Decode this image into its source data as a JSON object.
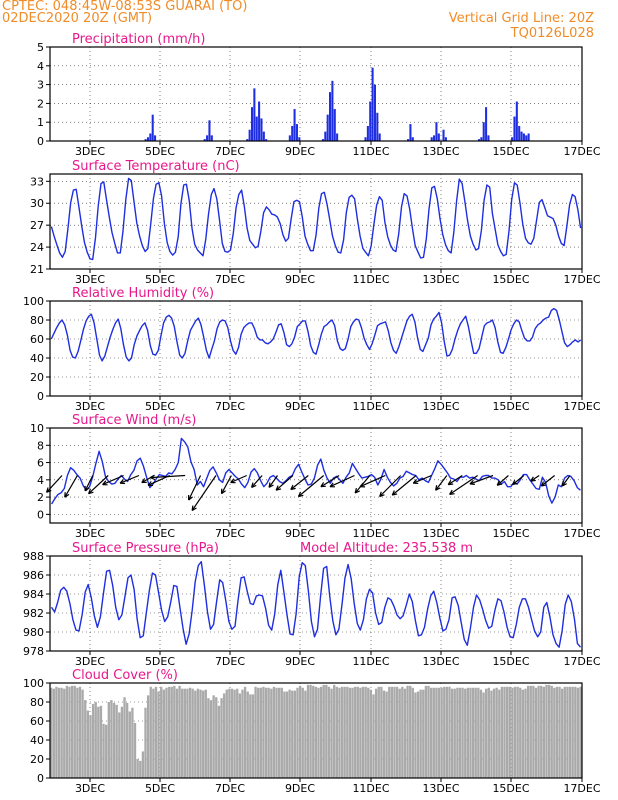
{
  "header": {
    "line1": "CPTEC:  048:45W-08:53S  GUARAI (TO)",
    "line2": "02DEC2020 20Z (GMT)",
    "right1": "Vertical Grid Line: 20Z",
    "right2": "TQ0126L028"
  },
  "colors": {
    "header": "#f08c28",
    "panel_title": "#e8188c",
    "series": "#1e2ee0",
    "cloud": "#aaaaaa",
    "arrow": "#000000"
  },
  "x_axis": {
    "start": "02DEC2020 20Z",
    "end": "17DEC2020 00Z",
    "tick_labels": [
      "3DEC",
      "5DEC",
      "7DEC",
      "9DEC",
      "11DEC",
      "13DEC",
      "15DEC",
      "17DEC"
    ]
  },
  "chart_data": [
    {
      "type": "bar",
      "title": "Precipitation (mm/h)",
      "ylim": [
        0,
        5
      ],
      "yticks": [
        "0",
        "1",
        "2",
        "3",
        "4",
        "5"
      ],
      "grid": true,
      "values": [
        0,
        0,
        0,
        0,
        0,
        0,
        0,
        0,
        0,
        0,
        0,
        0,
        0,
        0,
        0,
        0,
        0,
        0,
        0,
        0,
        0,
        0,
        0,
        0,
        0,
        0,
        0,
        0,
        0,
        0,
        0,
        0,
        0,
        0,
        0,
        0,
        0,
        0,
        0,
        0,
        0.1,
        0.2,
        0.4,
        1.4,
        0.3,
        0,
        0,
        0,
        0,
        0,
        0,
        0,
        0,
        0,
        0,
        0,
        0,
        0,
        0,
        0,
        0,
        0,
        0,
        0,
        0,
        0.1,
        0.3,
        1.1,
        0.3,
        0,
        0,
        0,
        0,
        0,
        0,
        0,
        0,
        0,
        0,
        0,
        0,
        0,
        0,
        0.1,
        0.6,
        1.8,
        2.8,
        1.3,
        2.1,
        1.2,
        0.5,
        0.1,
        0,
        0,
        0,
        0,
        0,
        0,
        0,
        0,
        0,
        0.3,
        0.8,
        1.7,
        0.9,
        0.2,
        0,
        0,
        0,
        0,
        0,
        0,
        0,
        0,
        0,
        0.1,
        0.5,
        1.4,
        2.6,
        3.2,
        1.7,
        0.4,
        0,
        0,
        0,
        0,
        0,
        0,
        0,
        0,
        0,
        0,
        0,
        0.2,
        0.8,
        2.1,
        3.9,
        3,
        1.5,
        0.4,
        0,
        0,
        0,
        0,
        0,
        0,
        0,
        0,
        0,
        0,
        0,
        0.1,
        0.9,
        0.2,
        0,
        0,
        0,
        0,
        0,
        0,
        0,
        0.2,
        0.3,
        1,
        0.4,
        0,
        0.6,
        0.2,
        0,
        0,
        0,
        0,
        0,
        0,
        0,
        0,
        0,
        0,
        0,
        0,
        0,
        0.1,
        0.2,
        1,
        1.8,
        0.3,
        0,
        0,
        0,
        0,
        0,
        0,
        0,
        0,
        0,
        0.2,
        1.3,
        2.1,
        0.8,
        0.5,
        0.4,
        0.3,
        0.4,
        0,
        0,
        0,
        0,
        0,
        0,
        0,
        0,
        0,
        0,
        0,
        0,
        0,
        0,
        0,
        0,
        0,
        0,
        0,
        0,
        0,
        0
      ]
    },
    {
      "type": "line",
      "title": "Surface Temperature (nC)",
      "ylim": [
        21,
        34
      ],
      "yticks": [
        "21",
        "24",
        "27",
        "30",
        "33"
      ],
      "grid": true,
      "values": [
        26.8,
        25.5,
        24.3,
        23.2,
        22.6,
        23.4,
        26.5,
        30.1,
        31.8,
        31.9,
        29.5,
        26.9,
        24.6,
        23.3,
        22.4,
        22.3,
        25.3,
        29.6,
        32.7,
        32.9,
        30.5,
        28.1,
        26,
        24.5,
        23.2,
        23.2,
        26.2,
        30.5,
        33.4,
        33.1,
        30.1,
        27.3,
        25.5,
        24.2,
        23.4,
        23.8,
        27,
        30.6,
        32.6,
        32.8,
        31,
        27.2,
        24.6,
        23.4,
        22.9,
        23.3,
        25.4,
        29.9,
        32.5,
        32.6,
        30.4,
        26.6,
        24.4,
        23.6,
        23.2,
        22.8,
        25,
        28.5,
        31.2,
        32,
        30.6,
        27.7,
        24.5,
        23.4,
        23.3,
        23.6,
        25.9,
        29.4,
        31.2,
        31.8,
        29.6,
        26.6,
        24.9,
        24.4,
        23.9,
        24.1,
        26.2,
        28.7,
        29.5,
        29.1,
        28.5,
        28.4,
        28.1,
        27.2,
        25.7,
        24.8,
        25.2,
        27.9,
        30.2,
        30.4,
        30.2,
        28.2,
        25.5,
        24.4,
        23.5,
        23.5,
        25.6,
        29.3,
        31.3,
        31.5,
        29.9,
        27.7,
        25.5,
        24.2,
        23.3,
        23.2,
        25,
        28.7,
        30.8,
        31.1,
        30.6,
        27.9,
        25.5,
        23.8,
        23.3,
        22.8,
        24.1,
        27.1,
        29.7,
        30.9,
        30.4,
        27.4,
        25.4,
        24.3,
        23.6,
        23.4,
        25.8,
        29.5,
        31.3,
        31,
        29.2,
        26.5,
        24.2,
        23.3,
        22.5,
        22.6,
        25.1,
        29.2,
        32.1,
        32.3,
        30.6,
        27.9,
        25.7,
        24.3,
        23.5,
        23.2,
        26,
        30.3,
        33.3,
        32.7,
        30.3,
        27.6,
        25.5,
        24.4,
        23.6,
        23.8,
        26.3,
        30.4,
        32.5,
        32.2,
        28.6,
        26.4,
        24.3,
        23.4,
        22.8,
        23,
        26.2,
        30.5,
        32.8,
        32.5,
        30,
        27.2,
        25.2,
        24.6,
        24.4,
        25.2,
        27.6,
        30.1,
        30.5,
        29.4,
        28.3,
        28.1,
        27.9,
        27,
        25.5,
        24.5,
        24.2,
        26.8,
        29.8,
        31.2,
        30.9,
        29.1,
        26.6
      ]
    },
    {
      "type": "line",
      "title": "Relative Humidity (%)",
      "ylim": [
        0,
        100
      ],
      "yticks": [
        "0",
        "20",
        "40",
        "60",
        "80",
        "100"
      ],
      "grid": true,
      "values": [
        60,
        66,
        72,
        77,
        80,
        75,
        64,
        48,
        41,
        40,
        47,
        58,
        70,
        79,
        84,
        86,
        77,
        60,
        43,
        37,
        42,
        52,
        62,
        70,
        77,
        81,
        71,
        54,
        41,
        37,
        40,
        54,
        63,
        69,
        74,
        77,
        69,
        53,
        44,
        43,
        48,
        63,
        77,
        83,
        85,
        82,
        73,
        57,
        43,
        40,
        45,
        58,
        69,
        74,
        79,
        82,
        75,
        62,
        48,
        40,
        49,
        58,
        71,
        78,
        80,
        79,
        72,
        58,
        48,
        44,
        51,
        65,
        72,
        75,
        77,
        77,
        71,
        62,
        59,
        59,
        56,
        55,
        57,
        60,
        67,
        75,
        76,
        67,
        54,
        52,
        55,
        62,
        73,
        76,
        79,
        79,
        68,
        53,
        46,
        44,
        54,
        65,
        73,
        75,
        78,
        80,
        74,
        58,
        50,
        48,
        50,
        60,
        73,
        78,
        81,
        80,
        72,
        61,
        54,
        49,
        55,
        64,
        74,
        76,
        77,
        78,
        69,
        56,
        48,
        45,
        52,
        61,
        70,
        79,
        84,
        86,
        78,
        61,
        49,
        47,
        54,
        61,
        75,
        81,
        84,
        88,
        77,
        57,
        42,
        43,
        49,
        60,
        69,
        76,
        80,
        84,
        73,
        58,
        45,
        45,
        50,
        62,
        74,
        77,
        78,
        80,
        72,
        57,
        46,
        45,
        51,
        60,
        70,
        76,
        80,
        78,
        69,
        61,
        58,
        58,
        62,
        71,
        75,
        77,
        80,
        82,
        83,
        90,
        92,
        90,
        80,
        68,
        56,
        52,
        54,
        57,
        59,
        57,
        59
      ]
    },
    {
      "type": "line",
      "title": "Surface Wind (m/s)",
      "ylim": [
        -1,
        10
      ],
      "yticks": [
        "0",
        "2",
        "4",
        "6",
        "8",
        "10"
      ],
      "grid": true,
      "values": [
        1.2,
        1.8,
        2.3,
        2.5,
        3,
        4.5,
        5.4,
        5.1,
        4.6,
        4.2,
        3.3,
        2.8,
        3.2,
        4.4,
        5.9,
        7.3,
        6.1,
        4.4,
        3.8,
        3.5,
        3.6,
        4.1,
        4.5,
        4.1,
        3.8,
        4.6,
        5.1,
        6.2,
        6.5,
        5.6,
        4.3,
        3.1,
        3.5,
        4.1,
        4.6,
        4.5,
        4.4,
        4.8,
        4.7,
        5.2,
        6,
        8.8,
        8.4,
        7.8,
        6.1,
        5.2,
        3.4,
        3.8,
        3.2,
        4.2,
        5.1,
        5.5,
        4.8,
        4,
        3.7,
        4.8,
        5.2,
        4.8,
        4.4,
        4.1,
        3.5,
        3.1,
        3.7,
        4.9,
        5.3,
        4.8,
        3.9,
        3.2,
        3.6,
        4.3,
        4.5,
        4.2,
        3.8,
        3.6,
        3.9,
        4.3,
        4.5,
        5.3,
        5.8,
        4.9,
        4.1,
        3.4,
        3.5,
        4.2,
        5.7,
        6.4,
        5.1,
        4.2,
        3.6,
        4.2,
        4.4,
        4,
        3.6,
        4.3,
        4.8,
        5.9,
        5.3,
        4.7,
        4.2,
        4.3,
        4.4,
        4.6,
        4.3,
        3.4,
        4.1,
        5.2,
        4.3,
        3.7,
        3.3,
        3.6,
        4.2,
        4.4,
        5,
        4.8,
        4.6,
        4.5,
        4,
        4.2,
        3.9,
        3.7,
        4.5,
        5.3,
        6.2,
        5.8,
        5.3,
        4.8,
        4.2,
        4.1,
        3.8,
        4.3,
        4.3,
        4.5,
        4.2,
        4.3,
        4.1,
        3.9,
        4.4,
        4.5,
        4.5,
        4.2,
        4.2,
        4,
        3.5,
        3.8,
        3.2,
        3.2,
        3.7,
        3.5,
        4,
        4.6,
        4.6,
        4,
        3.5,
        3,
        2.9,
        4.3,
        3.7,
        2.1,
        1.3,
        2,
        3.4,
        3.2,
        4.2,
        4.5,
        4.4,
        3.9,
        3.1,
        2.8
      ]
    },
    {
      "type": "line",
      "title": "Surface Pressure (hPa)",
      "ylim": [
        978,
        988
      ],
      "yticks": [
        "978",
        "980",
        "982",
        "984",
        "986",
        "988"
      ],
      "grid": true,
      "values": [
        982.6,
        982.1,
        983.1,
        984.4,
        984.7,
        984.3,
        983,
        981.3,
        980.2,
        980.1,
        981.8,
        984.2,
        985,
        983.6,
        981.7,
        980.5,
        981.6,
        984.1,
        986.4,
        986.5,
        984.9,
        982.6,
        981.3,
        981.8,
        983.7,
        985.7,
        986,
        984.5,
        981.4,
        979.4,
        979.6,
        982,
        984.4,
        986.2,
        986,
        984.2,
        982.3,
        981.1,
        981.6,
        983.2,
        984.9,
        984.8,
        982.6,
        980.4,
        978.7,
        979.8,
        982.3,
        985.3,
        987,
        987.4,
        984.9,
        982.1,
        980.3,
        980.8,
        983.2,
        985.5,
        985.2,
        983.3,
        981.1,
        980.3,
        980.6,
        983.3,
        985.7,
        985.8,
        984.3,
        983,
        982.9,
        983.8,
        983.9,
        983.8,
        982.5,
        980.7,
        980.2,
        981.9,
        985,
        986.5,
        984.2,
        981.8,
        979.8,
        979.7,
        981.9,
        985.8,
        987.3,
        987,
        984.3,
        981.1,
        979.5,
        980.3,
        983.8,
        986.7,
        986.9,
        983.7,
        981.2,
        979.7,
        980.3,
        982.9,
        985.7,
        987.1,
        985.6,
        983,
        980.9,
        980.2,
        981.3,
        983.5,
        984.5,
        984.1,
        982,
        980.8,
        981,
        982.6,
        983.6,
        983.4,
        982.7,
        981.8,
        981.4,
        981.7,
        982.8,
        984,
        983.2,
        981.2,
        979.6,
        979.7,
        980.5,
        982.4,
        983.8,
        984.3,
        983.1,
        981.5,
        980.1,
        980.3,
        981.3,
        983.6,
        983.7,
        982.8,
        981,
        979.2,
        978.6,
        980.4,
        982.6,
        983.9,
        983.4,
        982.4,
        981.2,
        980.4,
        980.6,
        982.3,
        983.5,
        983.3,
        982.1,
        980.5,
        979.5,
        979.4,
        980.8,
        982.6,
        983.5,
        983.5,
        982.6,
        981.3,
        980.1,
        979.5,
        980,
        982.6,
        983.1,
        981.6,
        979.7,
        978.8,
        978.4,
        980.1,
        982.9,
        983.9,
        983.2,
        981.4,
        978.8,
        978.4
      ]
    },
    {
      "type": "bar",
      "title": "Cloud Cover (%)",
      "ylim": [
        0,
        100
      ],
      "yticks": [
        "0",
        "20",
        "40",
        "60",
        "80",
        "100"
      ],
      "grid": true,
      "values": [
        95,
        94,
        96,
        95,
        95,
        94,
        97,
        96,
        97,
        97,
        95,
        96,
        93,
        82,
        71,
        66,
        78,
        80,
        75,
        76,
        57,
        56,
        80,
        82,
        79,
        77,
        69,
        75,
        85,
        79,
        70,
        74,
        58,
        20,
        18,
        28,
        74,
        87,
        96,
        94,
        96,
        91,
        96,
        93,
        95,
        96,
        96,
        97,
        94,
        97,
        94,
        94,
        94,
        95,
        94,
        92,
        94,
        93,
        92,
        93,
        84,
        82,
        87,
        85,
        76,
        84,
        89,
        93,
        94,
        94,
        93,
        94,
        89,
        93,
        96,
        91,
        88,
        88,
        96,
        95,
        95,
        96,
        95,
        95,
        94,
        96,
        95,
        95,
        95,
        91,
        91,
        93,
        92,
        92,
        95,
        97,
        95,
        92,
        98,
        98,
        97,
        96,
        95,
        96,
        98,
        98,
        96,
        94,
        98,
        96,
        95,
        96,
        96,
        96,
        95,
        95,
        96,
        96,
        95,
        96,
        96,
        95,
        93,
        88,
        94,
        96,
        96,
        92,
        91,
        96,
        96,
        96,
        96,
        94,
        96,
        94,
        97,
        97,
        95,
        90,
        91,
        93,
        93,
        97,
        97,
        95,
        95,
        95,
        95,
        95,
        96,
        96,
        96,
        94,
        94,
        95,
        95,
        95,
        94,
        95,
        95,
        95,
        95,
        95,
        93,
        90,
        94,
        95,
        92,
        94,
        95,
        93,
        96,
        96,
        96,
        96,
        95,
        96,
        96,
        95,
        93,
        94,
        97,
        97,
        97,
        95,
        97,
        97,
        96,
        98,
        98,
        97,
        95,
        96,
        96,
        94,
        96,
        96,
        96,
        96,
        96,
        95,
        96
      ]
    }
  ],
  "wind_barbs": [
    {
      "u": -2.2,
      "v": -2.4
    },
    {
      "u": -1.8,
      "v": -3.1
    },
    {
      "u": -1.1,
      "v": -2.2
    },
    {
      "u": -2.8,
      "v": -2.6
    },
    {
      "u": -3.0,
      "v": -1.3
    },
    {
      "u": -2.7,
      "v": -1.1
    },
    {
      "u": -1.8,
      "v": -1.0
    },
    {
      "u": -3.1,
      "v": -1.4
    },
    {
      "u": -5.0,
      "v": -0.3
    },
    {
      "u": -1.7,
      "v": -3.5
    },
    {
      "u": -3.4,
      "v": -5.0
    },
    {
      "u": -1.4,
      "v": -2.6
    },
    {
      "u": -2.3,
      "v": -1.0
    },
    {
      "u": -1.5,
      "v": -1.7
    },
    {
      "u": -1.2,
      "v": -1.7
    },
    {
      "u": -2.4,
      "v": -2.1
    },
    {
      "u": -2.5,
      "v": -2.0
    },
    {
      "u": -3.6,
      "v": -3.0
    },
    {
      "u": -2.6,
      "v": -1.6
    },
    {
      "u": -3.5,
      "v": -1.6
    },
    {
      "u": -2.1,
      "v": -2.5
    },
    {
      "u": -3.6,
      "v": -1.6
    },
    {
      "u": -3.0,
      "v": -3.0
    },
    {
      "u": -3.4,
      "v": -2.8
    },
    {
      "u": -2.6,
      "v": -1.1
    },
    {
      "u": -1.6,
      "v": -2.1
    },
    {
      "u": -2.0,
      "v": -1.3
    },
    {
      "u": -4.0,
      "v": -2.7
    },
    {
      "u": -3.3,
      "v": -1.2
    },
    {
      "u": -1.6,
      "v": -1.4
    },
    {
      "u": -1.6,
      "v": -1.3
    },
    {
      "u": -1.2,
      "v": -0.8
    },
    {
      "u": -1.9,
      "v": -1.5
    },
    {
      "u": -1.1,
      "v": -1.5
    }
  ],
  "annotations": {
    "model_altitude": "Model Altitude:  235.538  m"
  }
}
